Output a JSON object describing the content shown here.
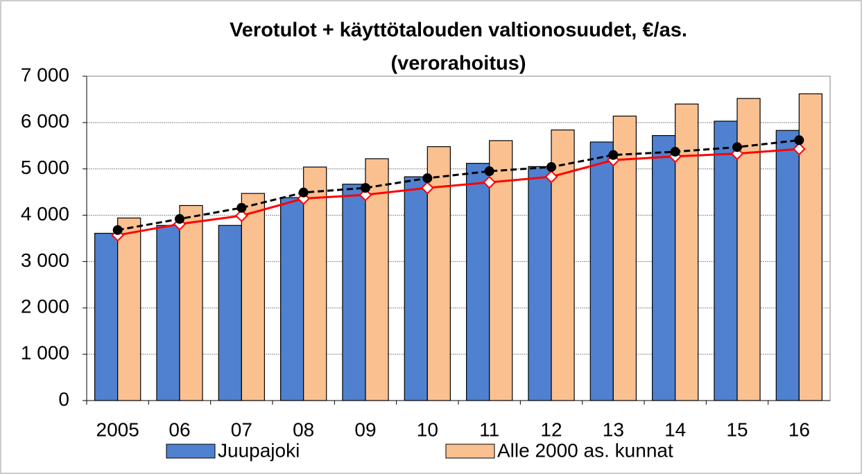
{
  "chart_data": {
    "type": "bar",
    "title": "Verotulot + käyttötalouden valtionosuudet, €/as.",
    "subtitle": "(verorahoitus)",
    "categories": [
      "2005",
      "06",
      "07",
      "08",
      "09",
      "10",
      "11",
      "12",
      "13",
      "14",
      "15",
      "16"
    ],
    "series": [
      {
        "name": "Juupajoki",
        "style": "bar",
        "color": "#4f81d0",
        "values": [
          3610,
          3780,
          3780,
          4380,
          4670,
          4830,
          5120,
          5050,
          5580,
          5720,
          6030,
          5830
        ]
      },
      {
        "name": "Alle 2000 as. kunnat",
        "style": "bar",
        "color": "#fac090",
        "values": [
          3940,
          4210,
          4470,
          5040,
          5220,
          5480,
          5610,
          5840,
          6140,
          6400,
          6520,
          6620
        ]
      },
      {
        "style": "line",
        "color": "#ff0000",
        "marker": "diamond",
        "dash": false,
        "values": [
          3570,
          3810,
          3990,
          4360,
          4440,
          4590,
          4710,
          4830,
          5190,
          5270,
          5330,
          5430
        ]
      },
      {
        "style": "line",
        "color": "#000000",
        "marker": "circle",
        "dash": true,
        "values": [
          3680,
          3920,
          4160,
          4490,
          4590,
          4800,
          4950,
          5040,
          5300,
          5370,
          5470,
          5620
        ]
      }
    ],
    "ylim": [
      0,
      7000
    ],
    "yticks": [
      0,
      {
        "value": 1000,
        "label": "1 000"
      },
      {
        "value": 2000,
        "label": "2 000"
      },
      {
        "value": 3000,
        "label": "3 000"
      },
      {
        "value": 4000,
        "label": "4 000"
      },
      {
        "value": 5000,
        "label": "5 000"
      },
      {
        "value": 6000,
        "label": "6 000"
      },
      {
        "value": 7000,
        "label": "7 000"
      }
    ],
    "grid": true
  }
}
